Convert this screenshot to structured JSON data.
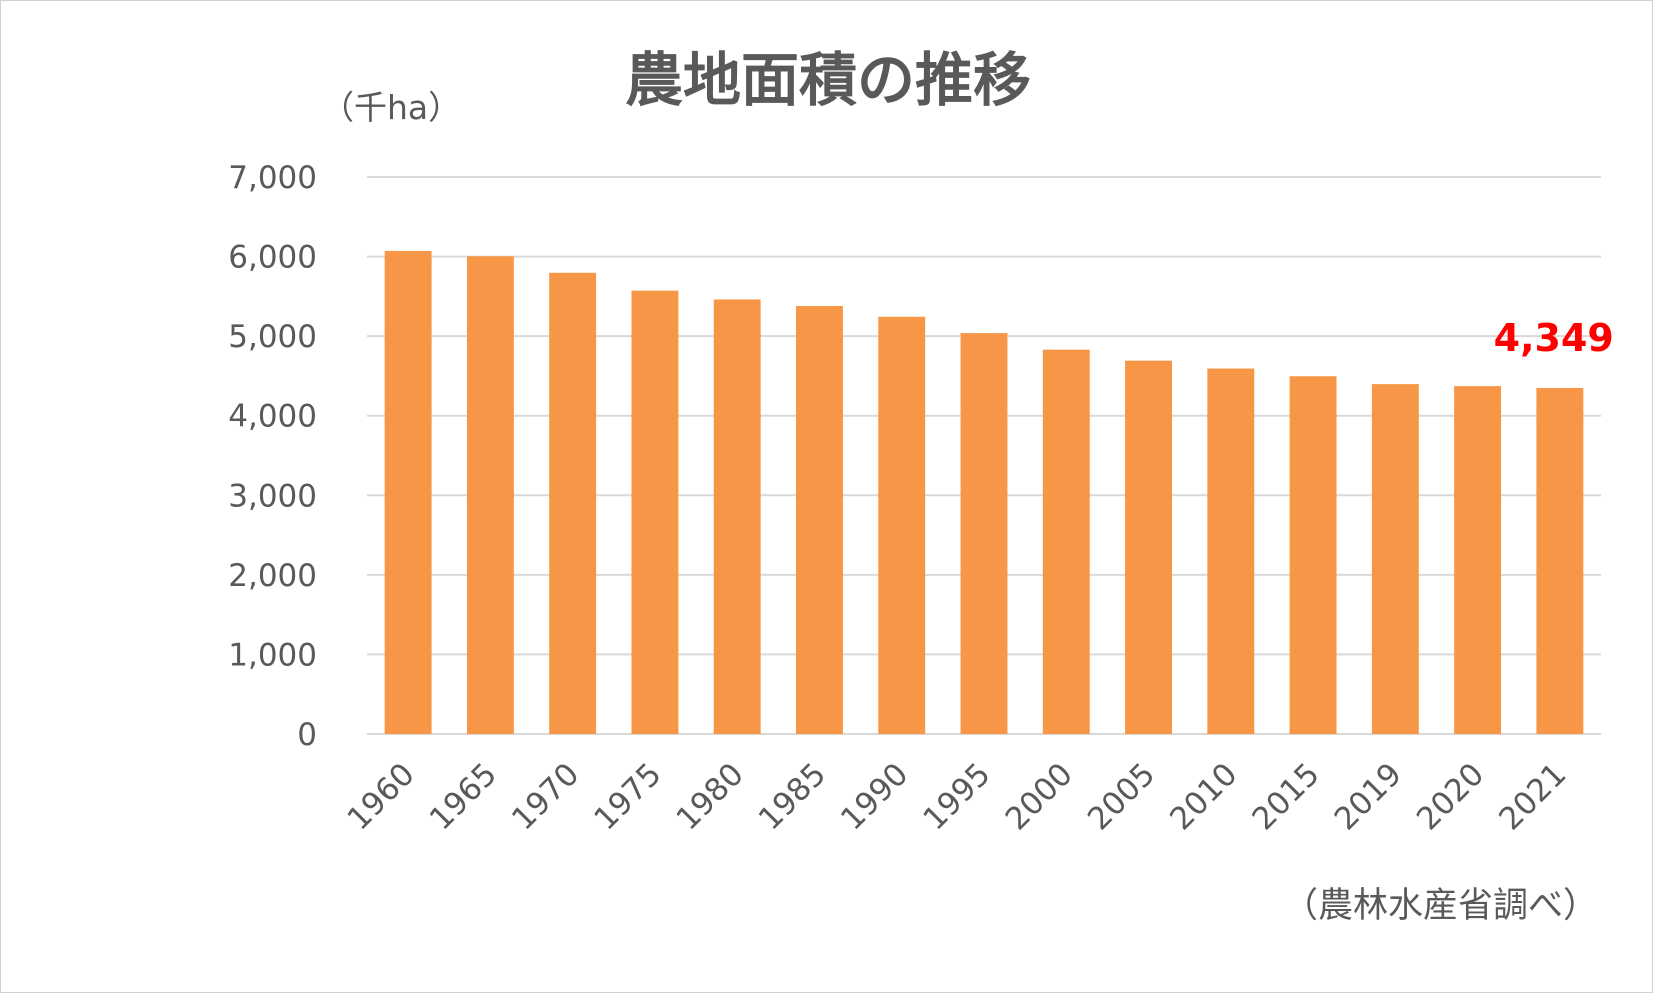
{
  "chart_data": {
    "type": "bar",
    "title": "農地面積の推移",
    "ylabel": "（千ha）",
    "source_note": "（農林水産省調べ）",
    "categories": [
      "1960",
      "1965",
      "1970",
      "1975",
      "1980",
      "1985",
      "1990",
      "1995",
      "2000",
      "2005",
      "2010",
      "2015",
      "2019",
      "2020",
      "2021"
    ],
    "values": [
      6071,
      6004,
      5796,
      5572,
      5461,
      5379,
      5243,
      5038,
      4830,
      4692,
      4593,
      4496,
      4397,
      4372,
      4349
    ],
    "ylim": [
      0,
      7000
    ],
    "yticks": [
      "0",
      "1,000",
      "2,000",
      "3,000",
      "4,000",
      "5,000",
      "6,000",
      "7,000"
    ],
    "grid": true,
    "legend": "none",
    "data_label": {
      "category": "2021",
      "text": "4,349",
      "color": "#ff0000"
    },
    "bar_color": "#f79646",
    "grid_color": "#d9d9d9"
  }
}
